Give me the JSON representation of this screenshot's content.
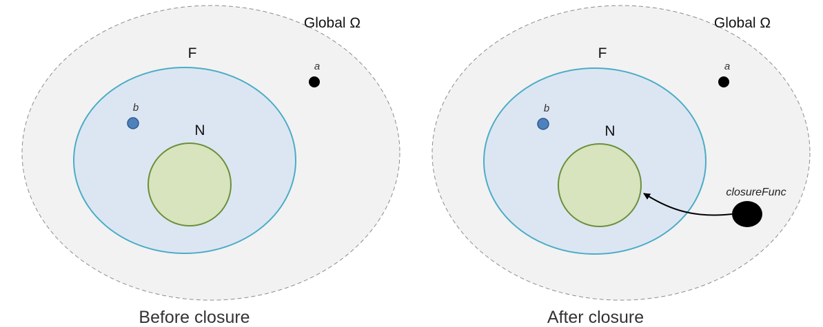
{
  "panels": [
    {
      "caption": "Before closure",
      "global_label": "Global Ω",
      "f_label": "F",
      "n_label": "N",
      "var_a": "a",
      "var_b": "b"
    },
    {
      "caption": "After closure",
      "global_label": "Global Ω",
      "f_label": "F",
      "n_label": "N",
      "var_a": "a",
      "var_b": "b",
      "closure_label": "closureFunc"
    }
  ],
  "colors": {
    "global_fill": "#f2f2f2",
    "global_stroke": "#8c8c8c",
    "f_fill": "#dce6f2",
    "f_stroke": "#4bacc6",
    "n_fill": "#d7e4bd",
    "n_stroke": "#6b8e3a",
    "b_dot": "#4f81bd",
    "a_dot": "#000000"
  }
}
